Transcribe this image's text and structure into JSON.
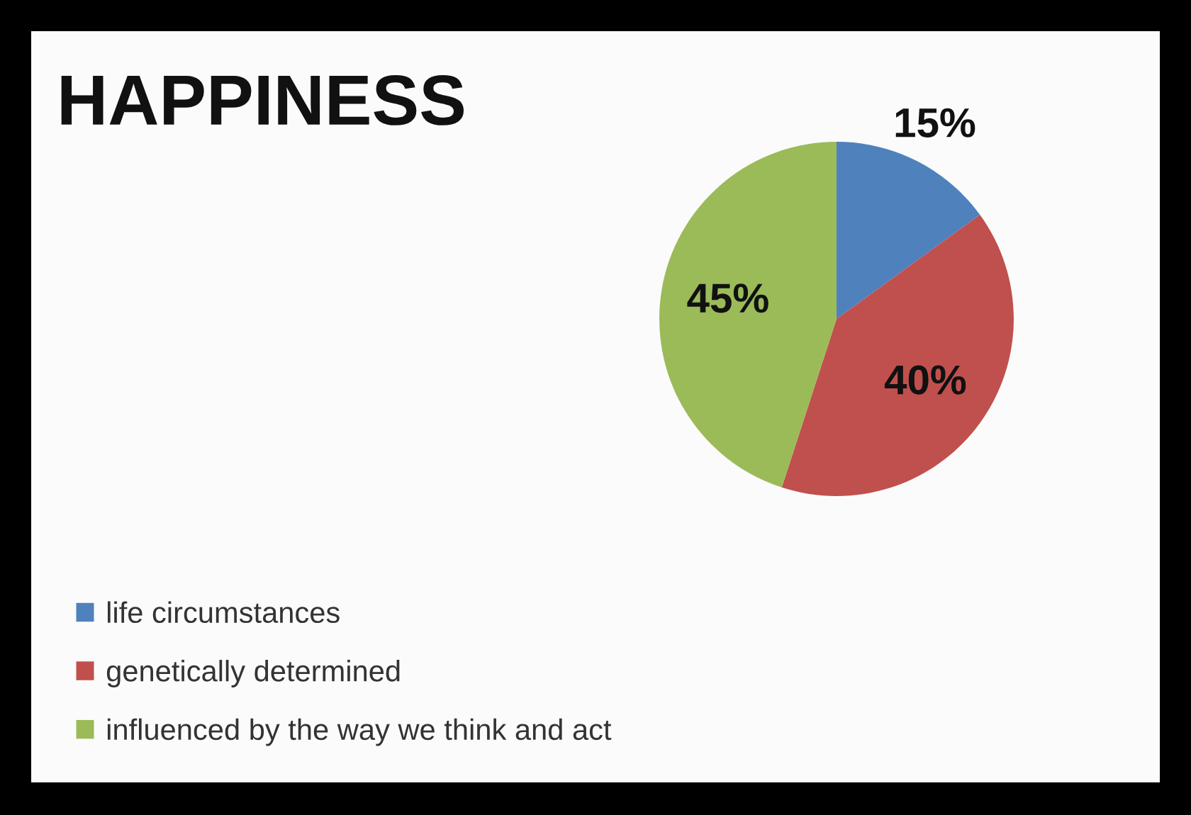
{
  "chart_data": {
    "type": "pie",
    "title": "HAPPINESS",
    "categories": [
      "life circumstances",
      "genetically determined",
      "influenced by the way we think and act"
    ],
    "values": [
      15,
      40,
      45
    ],
    "colors": [
      "#4f81bd",
      "#c0504d",
      "#9bbb59"
    ],
    "value_labels": [
      "15%",
      "40%",
      "45%"
    ],
    "legend": "bottom left"
  }
}
